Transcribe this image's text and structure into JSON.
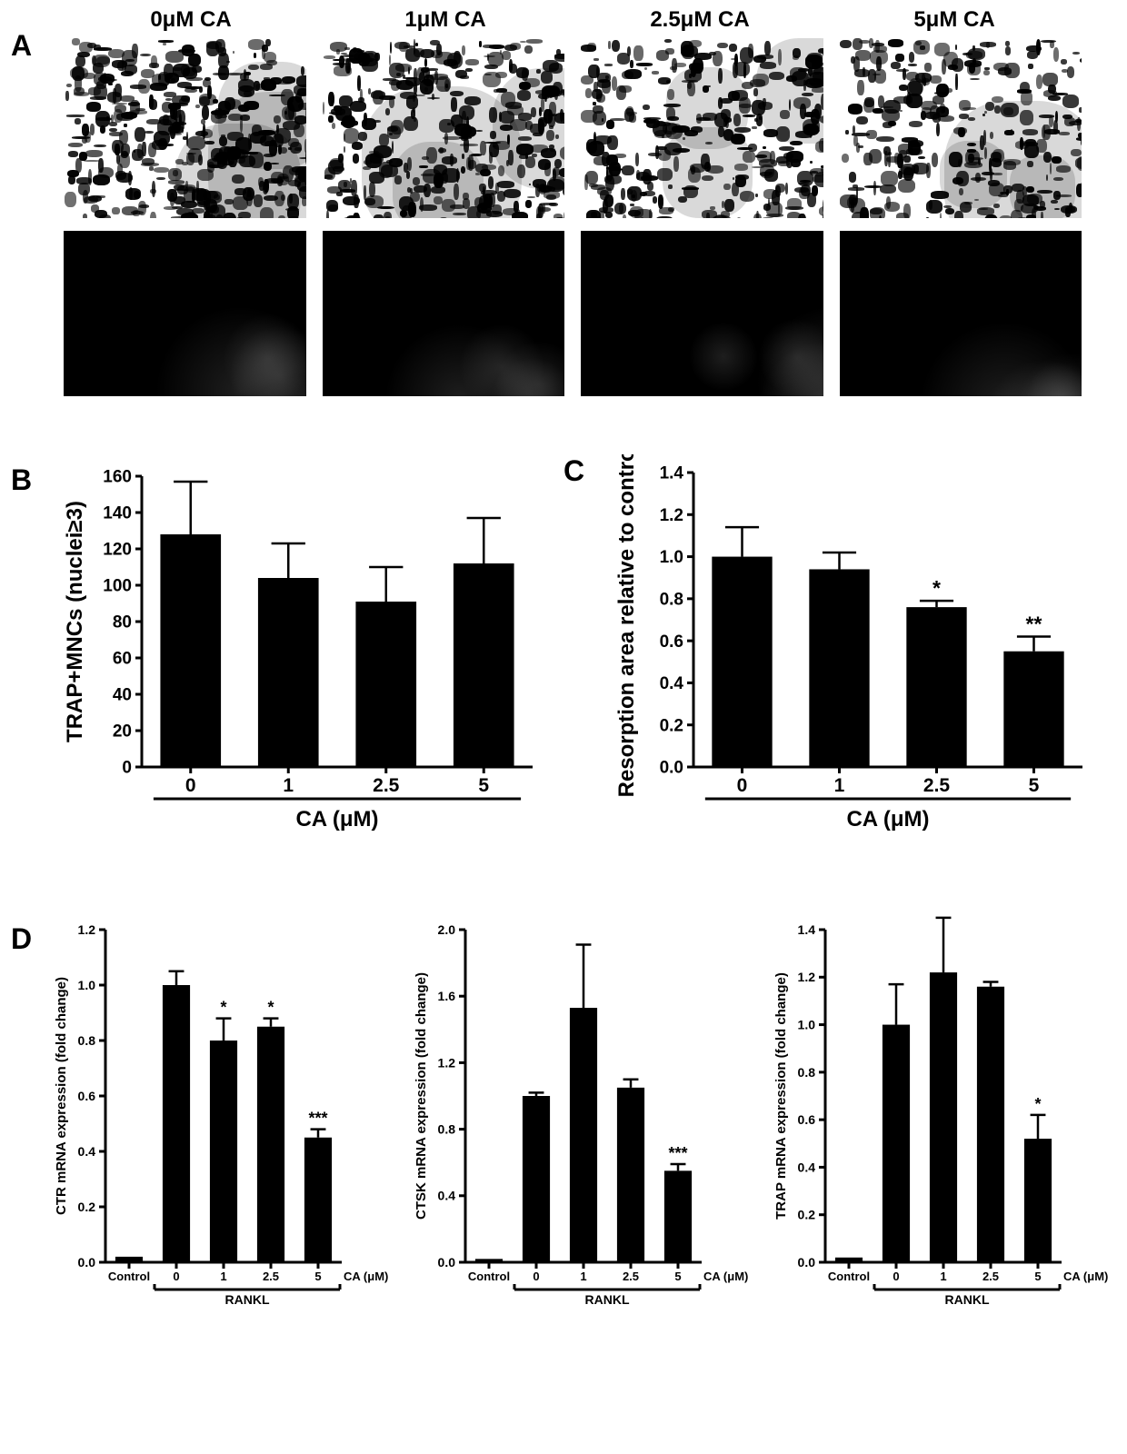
{
  "colors": {
    "bg": "#ffffff",
    "fg": "#000000",
    "bar": "#000000",
    "axis": "#000000",
    "speck": "#000000"
  },
  "fonts": {
    "panel_letter_size": 32,
    "panel_letter_weight": 700,
    "col_header_size": 24,
    "col_header_weight": 700,
    "axis_title_size": 24,
    "tick_size": 18,
    "small_axis_title_size": 18,
    "small_tick_size": 14,
    "group_label_size": 17
  },
  "panelA": {
    "letter": "A",
    "headers": [
      "0μM CA",
      "1μM CA",
      "2.5μM CA",
      "5μM CA"
    ],
    "rows": 2,
    "row0_bg": "#ffffff",
    "row1_bg": "#000000",
    "speck_density": [
      0.95,
      0.88,
      0.78,
      0.7
    ]
  },
  "panelB": {
    "letter": "B",
    "type": "bar",
    "y_title": "TRAP+MNCs (nuclei≥3)",
    "x_title": "CA (μM)",
    "categories": [
      "0",
      "1",
      "2.5",
      "5"
    ],
    "values": [
      128,
      104,
      91,
      112
    ],
    "err_up": [
      29,
      19,
      19,
      25
    ],
    "ylim": [
      0,
      160
    ],
    "ytick_step": 20,
    "bar_color": "#000000",
    "bar_width": 0.62,
    "title_fontsize": 24,
    "tick_fontsize": 19,
    "sig": [
      "",
      "",
      "",
      ""
    ]
  },
  "panelC": {
    "letter": "C",
    "type": "bar",
    "y_title": "Resorption area relative to control",
    "x_title": "CA (μM)",
    "categories": [
      "0",
      "1",
      "2.5",
      "5"
    ],
    "values": [
      1.0,
      0.94,
      0.76,
      0.55
    ],
    "err_up": [
      0.14,
      0.08,
      0.03,
      0.07
    ],
    "ylim": [
      0.0,
      1.4
    ],
    "ytick_step": 0.2,
    "bar_color": "#000000",
    "bar_width": 0.62,
    "title_fontsize": 24,
    "tick_fontsize": 19,
    "sig": [
      "",
      "",
      "*",
      "**"
    ]
  },
  "panelD": {
    "letter": "D",
    "group_label": "RANKL",
    "control_label": "Control",
    "x_unit_label": "CA (μM)",
    "charts": [
      {
        "y_title": "CTR mRNA expression (fold change)",
        "categories": [
          "Control",
          "0",
          "1",
          "2.5",
          "5"
        ],
        "values": [
          0.02,
          1.0,
          0.8,
          0.85,
          0.45
        ],
        "err_up": [
          0.0,
          0.05,
          0.08,
          0.03,
          0.03
        ],
        "ylim": [
          0.0,
          1.2
        ],
        "ytick_step": 0.2,
        "sig": [
          "",
          "",
          "*",
          "*",
          "***"
        ]
      },
      {
        "y_title": "CTSK mRNA expression (fold change)",
        "categories": [
          "Control",
          "0",
          "1",
          "2.5",
          "5"
        ],
        "values": [
          0.02,
          1.0,
          1.53,
          1.05,
          0.55
        ],
        "err_up": [
          0.0,
          0.02,
          0.38,
          0.05,
          0.04
        ],
        "ylim": [
          0.0,
          2.0
        ],
        "ytick_step": 0.4,
        "sig": [
          "",
          "",
          "",
          "",
          "***"
        ]
      },
      {
        "y_title": "TRAP mRNA expression (fold change)",
        "categories": [
          "Control",
          "0",
          "1",
          "2.5",
          "5"
        ],
        "values": [
          0.02,
          1.0,
          1.22,
          1.16,
          0.52
        ],
        "err_up": [
          0.0,
          0.17,
          0.23,
          0.02,
          0.1
        ],
        "ylim": [
          0.0,
          1.4
        ],
        "ytick_step": 0.2,
        "sig": [
          "",
          "",
          "",
          "",
          "*"
        ]
      }
    ],
    "bar_color": "#000000",
    "bar_width": 0.58,
    "title_fontsize": 15,
    "tick_fontsize": 14
  }
}
